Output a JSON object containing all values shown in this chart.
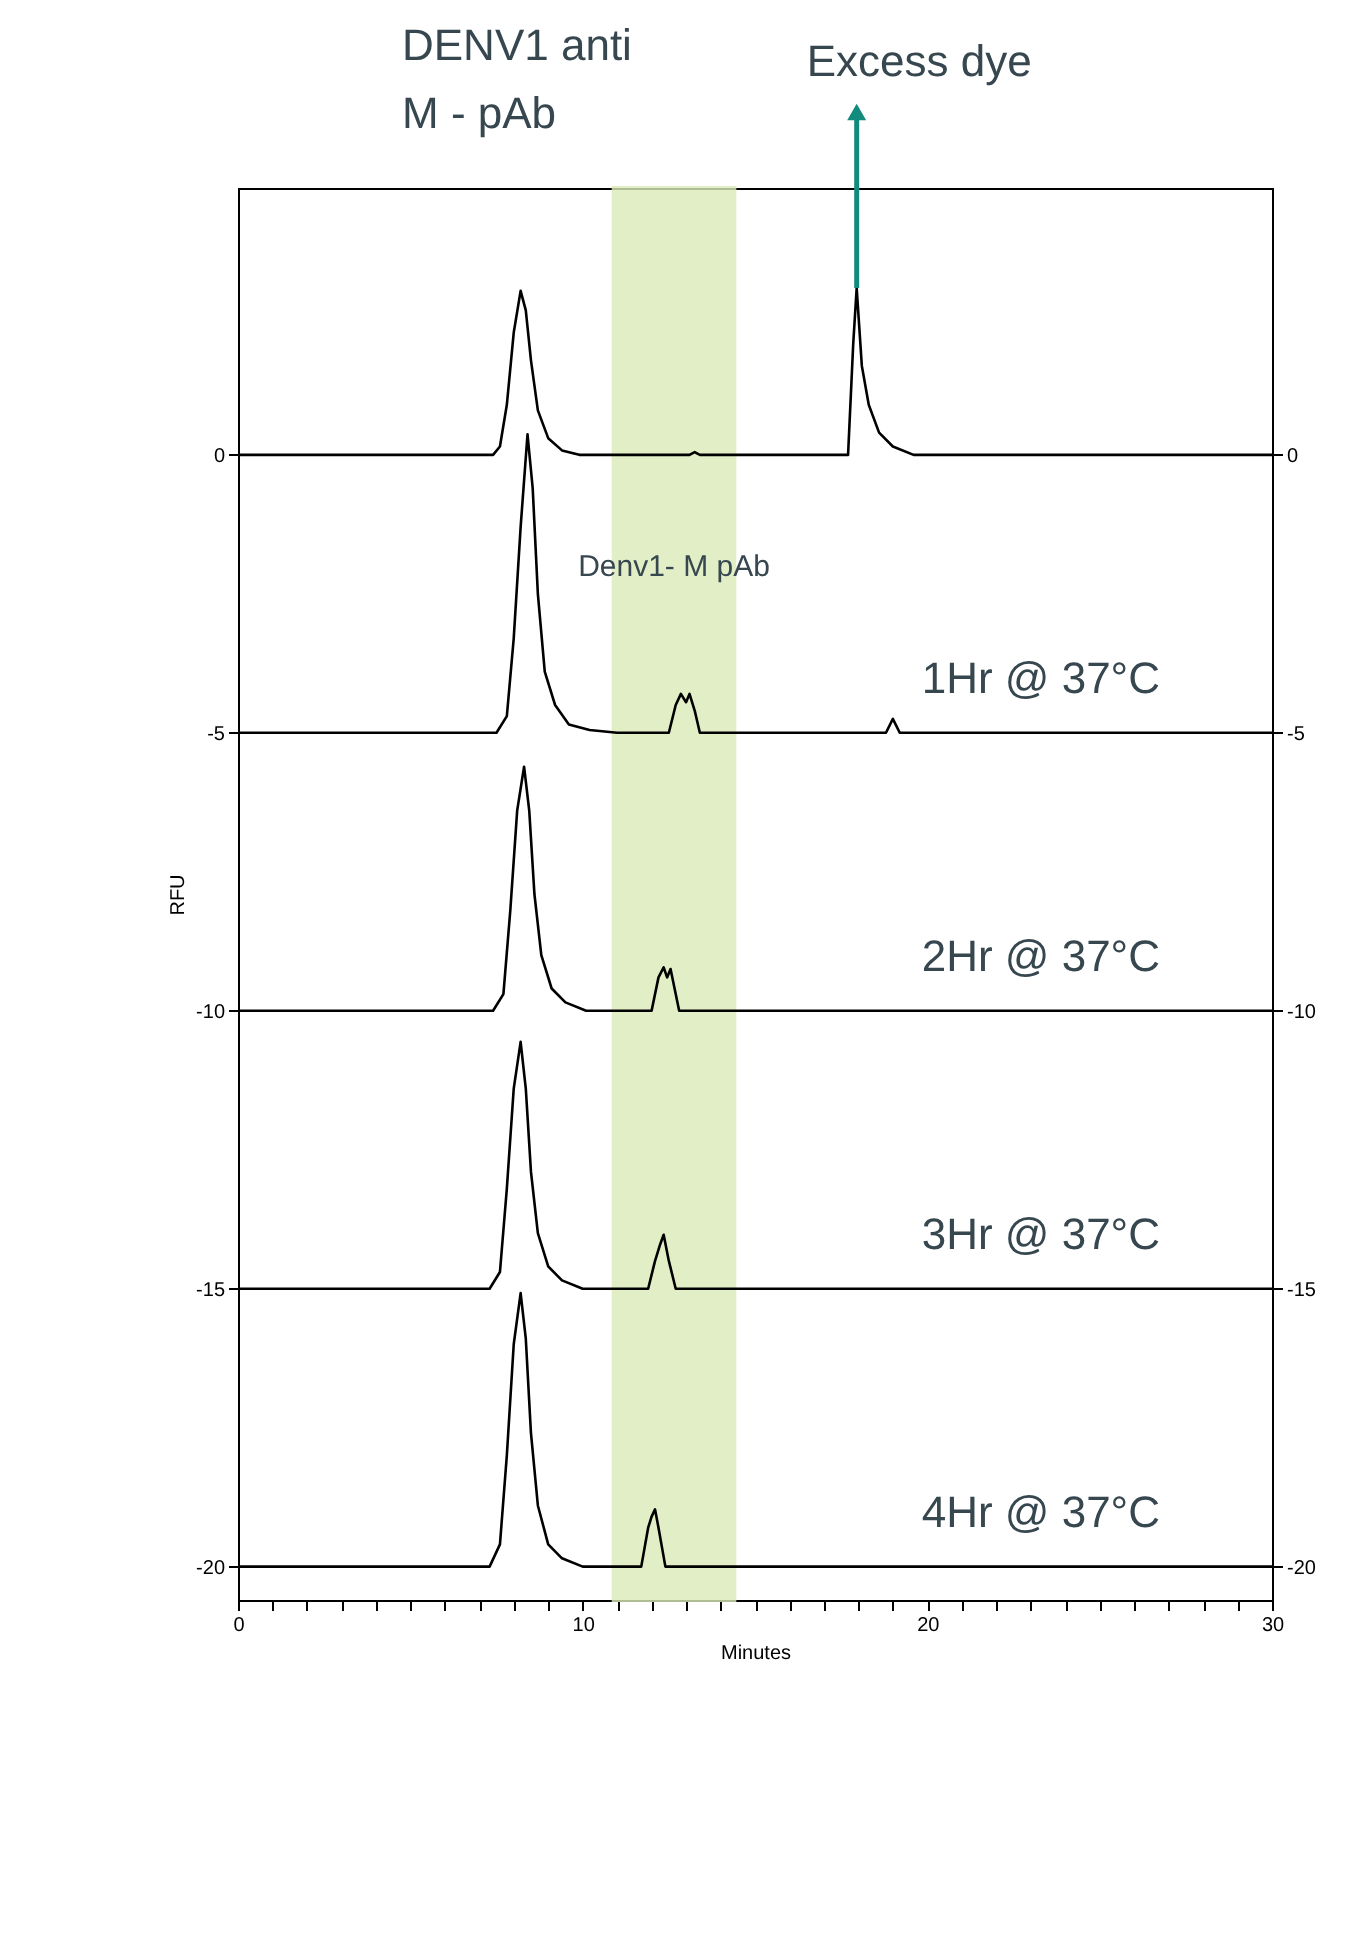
{
  "chart_data": {
    "type": "line",
    "xlabel": "Minutes",
    "ylabel": "RFU",
    "annotations": [
      "DENV1 anti M - pAb",
      {
        "text": "Excess dye",
        "x": 17.95,
        "y": 3.0
      }
    ],
    "xlim": [
      0,
      30
    ],
    "ylim": [
      -20.6,
      4.8
    ],
    "y2lim": [
      -20.6,
      4.8
    ],
    "xticks": [
      0,
      {
        "value": 1,
        "label": null
      },
      {
        "value": 2,
        "label": null
      },
      {
        "value": 3,
        "label": null
      },
      {
        "value": 4,
        "label": null
      },
      {
        "value": 5,
        "label": null
      },
      {
        "value": 6,
        "label": null
      },
      {
        "value": 7,
        "label": null
      },
      {
        "value": 8,
        "label": null
      },
      {
        "value": 9,
        "label": null
      },
      10,
      {
        "value": 11,
        "label": null
      },
      {
        "value": 12,
        "label": null
      },
      {
        "value": 13,
        "label": null
      },
      {
        "value": 14,
        "label": null
      },
      {
        "value": 15,
        "label": null
      },
      {
        "value": 16,
        "label": null
      },
      {
        "value": 17,
        "label": null
      },
      {
        "value": 18,
        "label": null
      },
      {
        "value": 19,
        "label": null
      },
      20,
      {
        "value": 21,
        "label": null
      },
      {
        "value": 22,
        "label": null
      },
      {
        "value": 23,
        "label": null
      },
      {
        "value": 24,
        "label": null
      },
      {
        "value": 25,
        "label": null
      },
      {
        "value": 26,
        "label": null
      },
      {
        "value": 27,
        "label": null
      },
      {
        "value": 28,
        "label": null
      },
      {
        "value": 29,
        "label": null
      },
      30
    ],
    "yticks": [
      0,
      -5,
      -10,
      -15,
      -20
    ],
    "y2ticks": [
      0,
      -5,
      -10,
      -15,
      -20
    ],
    "bands": [
      {
        "axis": "x",
        "from": 10.9,
        "to": 14.4,
        "label": "Denv1- M pAb",
        "color": "#dcecb8"
      }
    ],
    "series": [
      {
        "color": "#000000",
        "x": [
          0,
          7.4,
          7.6,
          7.8,
          8.0,
          8.2,
          8.35,
          8.5,
          8.7,
          9.0,
          9.4,
          9.9,
          13.1,
          13.25,
          13.4,
          17.7,
          17.85,
          17.95,
          18.1,
          18.3,
          18.6,
          19.0,
          19.6,
          30
        ],
        "values": [
          0,
          0,
          0.15,
          0.9,
          2.2,
          2.95,
          2.6,
          1.7,
          0.8,
          0.3,
          0.08,
          0,
          0,
          0.05,
          0,
          0,
          2.0,
          3.0,
          1.6,
          0.9,
          0.4,
          0.15,
          0,
          0
        ]
      },
      {
        "name": "1Hr @ 37°C",
        "color": "#000000",
        "x": [
          0,
          7.5,
          7.8,
          8.0,
          8.2,
          8.4,
          8.55,
          8.7,
          8.9,
          9.2,
          9.6,
          10.2,
          11.0,
          12.5,
          12.7,
          12.85,
          13.0,
          13.1,
          13.25,
          13.4,
          13.6,
          18.8,
          19.0,
          19.2,
          19.4,
          30
        ],
        "values": [
          -5,
          -5,
          -4.7,
          -3.3,
          -1.3,
          0.37,
          -0.6,
          -2.5,
          -3.9,
          -4.5,
          -4.85,
          -4.95,
          -5,
          -5,
          -4.5,
          -4.3,
          -4.45,
          -4.3,
          -4.6,
          -5,
          -5,
          -5,
          -4.75,
          -5,
          -5,
          -5
        ]
      },
      {
        "name": "2Hr @ 37°C",
        "color": "#000000",
        "x": [
          0,
          7.4,
          7.7,
          7.9,
          8.1,
          8.3,
          8.45,
          8.6,
          8.8,
          9.1,
          9.5,
          10.1,
          12.0,
          12.2,
          12.35,
          12.45,
          12.55,
          12.8,
          30
        ],
        "values": [
          -10,
          -10,
          -9.7,
          -8.2,
          -6.4,
          -5.61,
          -6.4,
          -7.9,
          -9.0,
          -9.6,
          -9.85,
          -10,
          -10,
          -9.4,
          -9.22,
          -9.4,
          -9.25,
          -10,
          -10
        ]
      },
      {
        "name": "3Hr @ 37°C",
        "color": "#000000",
        "x": [
          0,
          7.3,
          7.6,
          7.8,
          8.0,
          8.2,
          8.35,
          8.5,
          8.7,
          9.0,
          9.4,
          10.0,
          11.9,
          12.1,
          12.25,
          12.35,
          12.5,
          12.7,
          30
        ],
        "values": [
          -15,
          -15,
          -14.7,
          -13.2,
          -11.4,
          -10.56,
          -11.4,
          -12.9,
          -14.0,
          -14.6,
          -14.85,
          -15,
          -15,
          -14.5,
          -14.2,
          -14.03,
          -14.5,
          -15,
          -15
        ]
      },
      {
        "name": "4Hr @ 37°C",
        "color": "#000000",
        "x": [
          0,
          7.3,
          7.6,
          7.8,
          8.0,
          8.2,
          8.35,
          8.5,
          8.7,
          9.0,
          9.4,
          10.0,
          11.7,
          11.9,
          12.0,
          12.1,
          12.2,
          12.4,
          30
        ],
        "values": [
          -20,
          -20,
          -19.6,
          -18,
          -16,
          -15.08,
          -15.9,
          -17.6,
          -18.9,
          -19.6,
          -19.85,
          -20,
          -20,
          -19.3,
          -19.1,
          -18.97,
          -19.3,
          -20,
          -20
        ]
      }
    ]
  }
}
